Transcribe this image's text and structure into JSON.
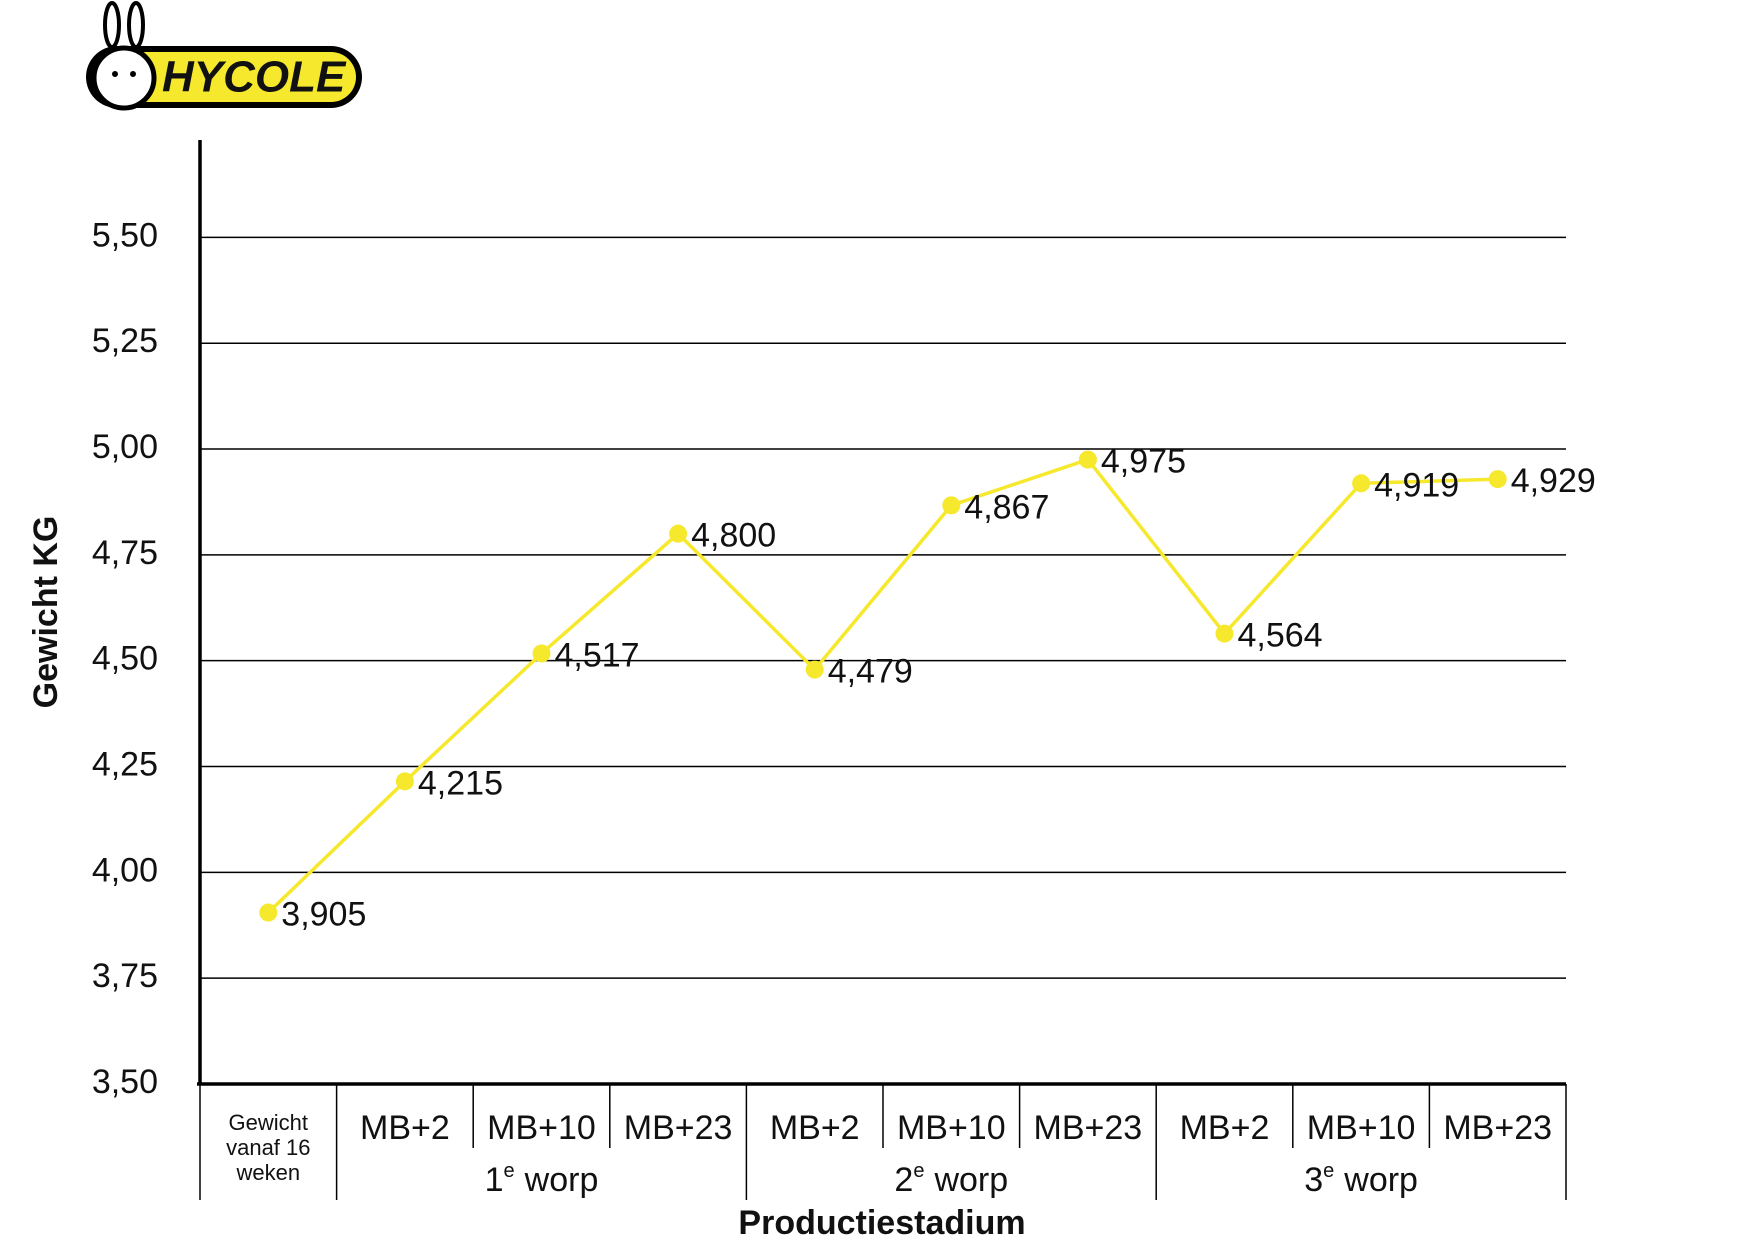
{
  "logo": "HYCOLE",
  "chart_data": {
    "type": "line",
    "y_label": "Gewicht KG",
    "x_label": "Productiestadium",
    "categories": [
      "Gewicht vanaf 16 weken",
      "MB+2",
      "MB+10",
      "MB+23",
      "MB+2",
      "MB+10",
      "MB+23",
      "MB+2",
      "MB+10",
      "MB+23"
    ],
    "groups": [
      {
        "number": "1",
        "sup": "e",
        "word": "worp"
      },
      {
        "number": "2",
        "sup": "e",
        "word": "worp"
      },
      {
        "number": "3",
        "sup": "e",
        "word": "worp"
      }
    ],
    "values": [
      3.905,
      4.215,
      4.517,
      4.8,
      4.479,
      4.867,
      4.975,
      4.564,
      4.919,
      4.929
    ],
    "value_labels": [
      "3,905",
      "4,215",
      "4,517",
      "4,800",
      "4,479",
      "4,867",
      "4,975",
      "4,564",
      "4,919",
      "4,929"
    ],
    "color": "#f6e82c",
    "ylim": [
      3.5,
      5.73
    ],
    "yticks": [
      {
        "value": 3.5,
        "label": "3,50"
      },
      {
        "value": 3.75,
        "label": "3,75"
      },
      {
        "value": 4,
        "label": "4,00"
      },
      {
        "value": 4.25,
        "label": "4,25"
      },
      {
        "value": 4.5,
        "label": "4,50"
      },
      {
        "value": 4.75,
        "label": "4,75"
      },
      {
        "value": 5,
        "label": "5,00"
      },
      {
        "value": 5.25,
        "label": "5,25"
      },
      {
        "value": 5.5,
        "label": "5,50"
      }
    ],
    "grid": true
  }
}
